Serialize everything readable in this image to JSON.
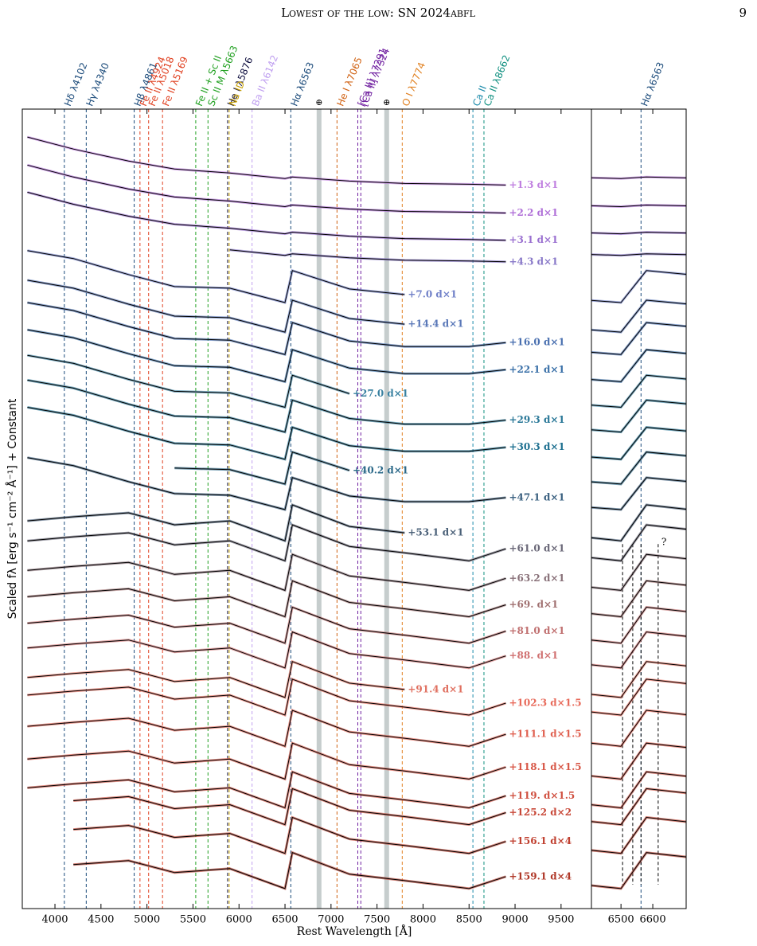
{
  "header": {
    "title": "Lowest of the low: SN 2024abfl",
    "page": "9"
  },
  "chart_data": {
    "type": "spectra",
    "xlabel": "Rest Wavelength [Å]",
    "ylabel": "Scaled fλ [erg s⁻¹ cm⁻² Å⁻¹] + Constant",
    "xlim": [
      3645,
      9830
    ],
    "xticks": [
      4000,
      4500,
      5000,
      5500,
      6000,
      6500,
      7000,
      7500,
      8000,
      8500,
      9000,
      9500
    ],
    "zoom_xlim": [
      6407,
      6705
    ],
    "zoom_xticks": [
      6500,
      6600
    ],
    "ylim": [
      0,
      100
    ],
    "x": [
      3700,
      4200,
      4800,
      5300,
      5900,
      6500,
      6580,
      7200,
      7800,
      8500,
      8900
    ],
    "lines": [
      {
        "label": "Hδ λ4102",
        "wavelength": 4102,
        "color": "#1a4a7a"
      },
      {
        "label": "Hγ λ4340",
        "wavelength": 4340,
        "color": "#1a4a7a"
      },
      {
        "label": "Hβ λ4861",
        "wavelength": 4861,
        "color": "#1a4a7a"
      },
      {
        "label": "Fe II λ4924",
        "wavelength": 4924,
        "color": "#e04020"
      },
      {
        "label": "Fe II λ5018",
        "wavelength": 5018,
        "color": "#e04020"
      },
      {
        "label": "Fe II λ5169",
        "wavelength": 5169,
        "color": "#e04020"
      },
      {
        "label": "Fe II + Sc II",
        "wavelength": 5530,
        "color": "#20a020"
      },
      {
        "label": "Sc II M λ5663",
        "wavelength": 5663,
        "color": "#20a020"
      },
      {
        "label": "He I λ5876",
        "wavelength": 5876,
        "color": "#101040"
      },
      {
        "label": "Na ID",
        "wavelength": 5893,
        "color": "#c8a000"
      },
      {
        "label": "Ba II λ6142",
        "wavelength": 6142,
        "color": "#c0a0f0"
      },
      {
        "label": "Hα λ6563",
        "wavelength": 6563,
        "color": "#1a4a7a"
      },
      {
        "label": "He I λ7065",
        "wavelength": 7065,
        "color": "#d06010"
      },
      {
        "label": "[Ca II] λ7291",
        "wavelength": 7291,
        "color": "#7020a0"
      },
      {
        "label": "[Ca II] λ7324",
        "wavelength": 7324,
        "color": "#7020a0"
      },
      {
        "label": "O I λ7774",
        "wavelength": 7774,
        "color": "#e08020"
      },
      {
        "label": "Ca II",
        "wavelength": 8542,
        "color": "#1a8aaa"
      },
      {
        "label": "Ca II λ8662",
        "wavelength": 8662,
        "color": "#109080"
      }
    ],
    "telluric": [
      {
        "label": "⊕",
        "wavelength": 6870
      },
      {
        "label": "⊕",
        "wavelength": 7605
      }
    ],
    "zoom_line": {
      "label": "Hα λ6563",
      "wavelength": 6563,
      "color": "#1a4a7a"
    },
    "zoom_marks": [
      6505,
      6537,
      6563,
      6617
    ],
    "zoom_mark_label": "?",
    "series": [
      {
        "name": "+1.3 d×1",
        "color": "#c080e0",
        "values": [
          96.5,
          95,
          93.5,
          92.5,
          92,
          91.3,
          91.5,
          91,
          90.7,
          90.6,
          90.5
        ]
      },
      {
        "name": "+2.2 d×1",
        "color": "#b070d8",
        "values": [
          93,
          91.5,
          90,
          89,
          88.5,
          87.8,
          88,
          87.5,
          87.2,
          87.1,
          87
        ]
      },
      {
        "name": "+3.1 d×1",
        "color": "#9a70d0",
        "values": [
          89.6,
          88.1,
          86.6,
          85.6,
          85.1,
          84.4,
          84.6,
          84.1,
          83.8,
          83.7,
          83.6
        ]
      },
      {
        "name": "+4.3 d×1",
        "color": "#8878c8",
        "values": [
          null,
          null,
          null,
          null,
          82.4,
          81.7,
          81.9,
          81.4,
          81.1,
          81,
          80.9
        ]
      },
      {
        "name": "+7.0 d×1",
        "color": "#7080c8",
        "values": [
          82.3,
          81.3,
          79.3,
          77.8,
          77.6,
          75.8,
          79.8,
          77.5,
          76.8,
          null,
          null
        ]
      },
      {
        "name": "+14.4 d×1",
        "color": "#5a78b8",
        "values": [
          78.6,
          77.6,
          75.6,
          74.1,
          73.9,
          72.1,
          76.1,
          73.8,
          73.1,
          null,
          null
        ]
      },
      {
        "name": "+16.0 d×1",
        "color": "#4a70b0",
        "values": [
          75.8,
          74.8,
          72.8,
          71.3,
          71.1,
          69.3,
          73.3,
          71,
          70.3,
          70.3,
          70.8
        ]
      },
      {
        "name": "+22.1 d×1",
        "color": "#3a70a8",
        "values": [
          72.4,
          71.4,
          69.4,
          67.9,
          67.7,
          65.9,
          69.9,
          67.6,
          66.9,
          66.9,
          67.4
        ]
      },
      {
        "name": "+27.0 d×1",
        "color": "#3880a0",
        "values": [
          69.2,
          68.2,
          66.2,
          64.7,
          64.5,
          62.7,
          66.7,
          64.4,
          null,
          null,
          null
        ]
      },
      {
        "name": "+29.3 d×1",
        "color": "#2a7898",
        "values": [
          66.1,
          65.1,
          63.1,
          61.6,
          61.4,
          59.6,
          63.6,
          61.3,
          60.6,
          60.6,
          61.1
        ]
      },
      {
        "name": "+30.3 d×1",
        "color": "#1e7090",
        "values": [
          62.7,
          61.7,
          59.7,
          58.2,
          58,
          56.2,
          60.2,
          57.9,
          57.2,
          57.2,
          57.7
        ]
      },
      {
        "name": "+40.2 d×1",
        "color": "#2a6888",
        "values": [
          null,
          null,
          null,
          55.1,
          54.9,
          53.1,
          57.1,
          54.8,
          null,
          null,
          null
        ]
      },
      {
        "name": "+47.1 d×1",
        "color": "#3a6080",
        "values": [
          56.4,
          55.4,
          53.4,
          51.9,
          51.7,
          49.9,
          53.9,
          51.6,
          50.9,
          50.9,
          51.4
        ]
      },
      {
        "name": "+53.1 d×1",
        "color": "#4a6078",
        "values": [
          48.5,
          49,
          49.5,
          48,
          48.5,
          46,
          50.5,
          47.8,
          47,
          null,
          null
        ]
      },
      {
        "name": "+61.0 d×1",
        "color": "#6a6878",
        "values": [
          46,
          46.5,
          47,
          45.5,
          46,
          43.5,
          48,
          45.3,
          44.5,
          43.5,
          45
        ]
      },
      {
        "name": "+63.2 d×1",
        "color": "#887078",
        "values": [
          42.3,
          42.8,
          43.3,
          41.8,
          42.3,
          39.8,
          44.3,
          41.6,
          40.8,
          39.8,
          41.3
        ]
      },
      {
        "name": "+69. d×1",
        "color": "#a07070",
        "values": [
          39,
          39.5,
          40,
          38.5,
          39,
          36.5,
          41,
          38.3,
          37.5,
          36.5,
          38
        ]
      },
      {
        "name": "+81.0 d×1",
        "color": "#c07070",
        "values": [
          35.7,
          36.2,
          36.7,
          35.2,
          35.7,
          33.2,
          37.7,
          35,
          34.2,
          33.2,
          34.7
        ]
      },
      {
        "name": "+88. d×1",
        "color": "#d07070",
        "values": [
          32.6,
          33.1,
          33.6,
          32.1,
          32.6,
          30.1,
          34.6,
          31.9,
          31.1,
          30.1,
          31.6
        ]
      },
      {
        "name": "+91.4 d×1",
        "color": "#e07060",
        "values": [
          28.9,
          29.4,
          29.9,
          28.4,
          28.9,
          26.4,
          30.9,
          28.2,
          27.4,
          null,
          null
        ]
      },
      {
        "name": "+102.3 d×1.5",
        "color": "#e86a5a",
        "values": [
          26.7,
          27.2,
          27.7,
          26.2,
          26.7,
          24.2,
          28.7,
          26,
          25.2,
          24.2,
          25.7
        ]
      },
      {
        "name": "+111.1 d×1.5",
        "color": "#e06050",
        "values": [
          22.8,
          23.3,
          23.8,
          22.3,
          22.8,
          20.3,
          24.8,
          22.1,
          21.3,
          20.3,
          21.8
        ]
      },
      {
        "name": "+118.1 d×1.5",
        "color": "#d85848",
        "values": [
          18.7,
          19.2,
          19.7,
          18.2,
          18.7,
          16.2,
          20.7,
          18,
          17.2,
          16.2,
          17.7
        ]
      },
      {
        "name": "+119. d×1.5",
        "color": "#d05040",
        "values": [
          15.1,
          15.6,
          16.1,
          14.6,
          15.1,
          12.6,
          17.1,
          14.4,
          13.6,
          12.6,
          14.1
        ]
      },
      {
        "name": "+125.2 d×2",
        "color": "#c84838",
        "values": [
          null,
          13.5,
          14,
          12.5,
          13,
          10.5,
          15,
          12.3,
          11.5,
          10.5,
          12
        ]
      },
      {
        "name": "+156.1 d×4",
        "color": "#c04030",
        "values": [
          null,
          9.9,
          10.4,
          8.9,
          9.4,
          6.9,
          11.4,
          8.7,
          7.9,
          6.9,
          8.4
        ]
      },
      {
        "name": "+159.1 d×4",
        "color": "#b03828",
        "values": [
          null,
          5.5,
          6,
          4.5,
          5,
          2.5,
          7,
          4.3,
          3.5,
          2.5,
          4
        ]
      }
    ]
  }
}
